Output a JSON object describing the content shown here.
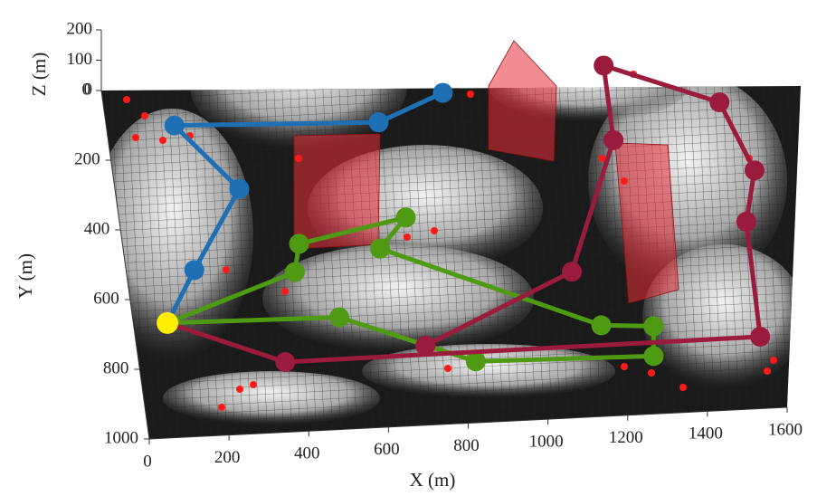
{
  "chart_data": {
    "type": "path3d",
    "xlabel": "X (m)",
    "ylabel": "Y (m)",
    "zlabel": "Z (m)",
    "xlim": [
      0,
      1600
    ],
    "ylim": [
      0,
      1000
    ],
    "zlim": [
      0,
      200
    ],
    "xticks": [
      0,
      200,
      400,
      600,
      800,
      1000,
      1200,
      1400,
      1600
    ],
    "yticks": [
      0,
      200,
      400,
      600,
      800,
      1000
    ],
    "zticks": [
      0,
      100,
      200
    ],
    "start": {
      "x": 85,
      "y": 672,
      "color": "#ffee00"
    },
    "series": [
      {
        "color": "#1f6fb5",
        "x": [
          85,
          170,
          310,
          170,
          680,
          850
        ],
        "y": [
          672,
          525,
          300,
          110,
          130,
          55
        ]
      },
      {
        "color": "#4f9a12",
        "x": [
          85,
          420,
          440,
          715,
          640,
          1165,
          1295,
          1285,
          840,
          515,
          85
        ],
        "y": [
          672,
          545,
          465,
          405,
          490,
          740,
          750,
          835,
          825,
          680,
          672
        ]
      },
      {
        "color": "#9b1b3c",
        "x": [
          85,
          365,
          1557,
          1562,
          1600,
          1536,
          1260,
          1259,
          1110,
          720
        ],
        "y": [
          672,
          800,
          795,
          465,
          320,
          121,
          0,
          214,
          583,
          773
        ]
      }
    ]
  }
}
